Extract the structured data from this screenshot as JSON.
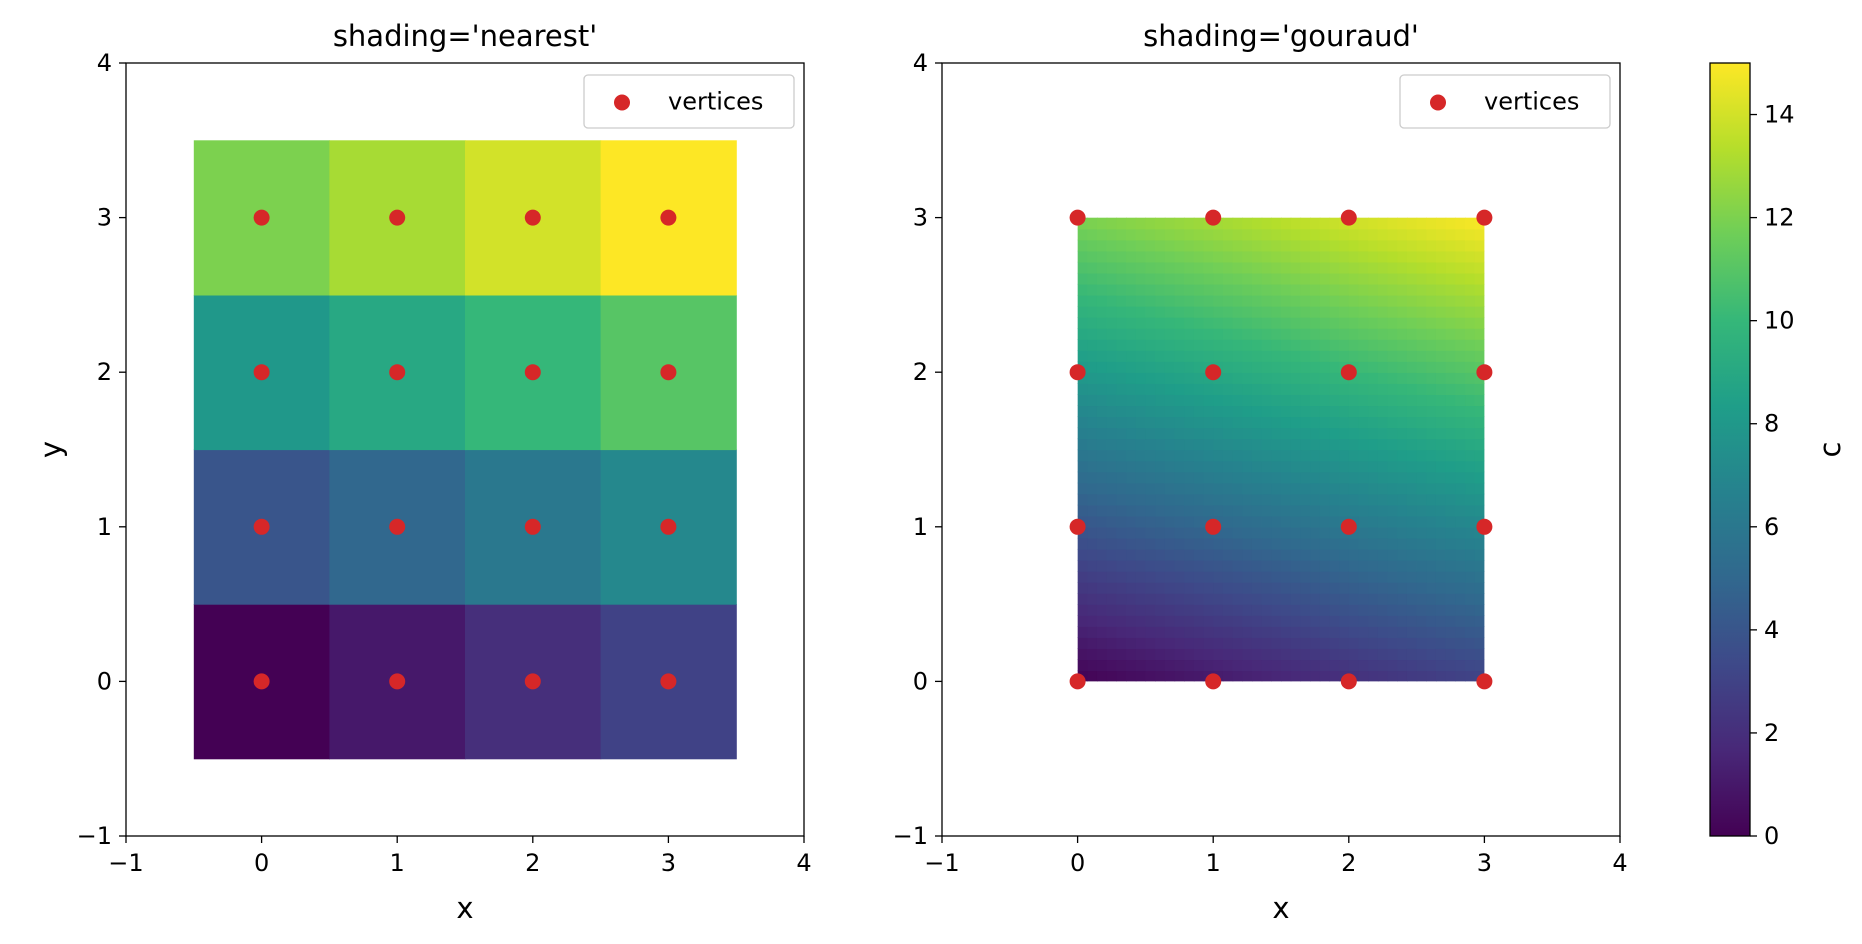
{
  "colormap": {
    "name": "viridis",
    "stops": [
      "#440154",
      "#482878",
      "#3e4989",
      "#31688e",
      "#26828e",
      "#1f9e89",
      "#35b779",
      "#6ece58",
      "#b5de2b",
      "#fde725"
    ]
  },
  "marker_color": "#d62728",
  "chart_data": [
    {
      "type": "heatmap",
      "title": "shading='nearest'",
      "xlabel": "x",
      "ylabel": "y",
      "xlim": [
        -1,
        4
      ],
      "ylim": [
        -1,
        4
      ],
      "xticks": [
        -1,
        0,
        1,
        2,
        3,
        4
      ],
      "yticks": [
        -1,
        0,
        1,
        2,
        3,
        4
      ],
      "xtick_labels": [
        "−1",
        "0",
        "1",
        "2",
        "3",
        "4"
      ],
      "ytick_labels": [
        "−1",
        "0",
        "1",
        "2",
        "3",
        "4"
      ],
      "shading": "nearest",
      "x": [
        0,
        1,
        2,
        3
      ],
      "y": [
        0,
        1,
        2,
        3
      ],
      "c": [
        [
          0,
          1,
          2,
          3
        ],
        [
          4,
          5,
          6,
          7
        ],
        [
          8,
          9,
          10,
          11
        ],
        [
          12,
          13,
          14,
          15
        ]
      ],
      "scatter": {
        "name": "vertices",
        "x": [
          0,
          1,
          2,
          3
        ],
        "y": [
          0,
          1,
          2,
          3
        ]
      },
      "legend": {
        "placement": "upper right",
        "label": "vertices"
      }
    },
    {
      "type": "heatmap",
      "title": "shading='gouraud'",
      "xlabel": "x",
      "ylabel": "",
      "xlim": [
        -1,
        4
      ],
      "ylim": [
        -1,
        4
      ],
      "xticks": [
        -1,
        0,
        1,
        2,
        3,
        4
      ],
      "yticks": [
        -1,
        0,
        1,
        2,
        3,
        4
      ],
      "xtick_labels": [
        "−1",
        "0",
        "1",
        "2",
        "3",
        "4"
      ],
      "ytick_labels": [
        "−1",
        "0",
        "1",
        "2",
        "3",
        "4"
      ],
      "shading": "gouraud",
      "x": [
        0,
        1,
        2,
        3
      ],
      "y": [
        0,
        1,
        2,
        3
      ],
      "c": [
        [
          0,
          1,
          2,
          3
        ],
        [
          4,
          5,
          6,
          7
        ],
        [
          8,
          9,
          10,
          11
        ],
        [
          12,
          13,
          14,
          15
        ]
      ],
      "scatter": {
        "name": "vertices",
        "x": [
          0,
          1,
          2,
          3
        ],
        "y": [
          0,
          1,
          2,
          3
        ]
      },
      "legend": {
        "placement": "upper right",
        "label": "vertices"
      }
    }
  ],
  "colorbar": {
    "label": "c",
    "range": [
      0,
      15
    ],
    "ticks": [
      0,
      2,
      4,
      6,
      8,
      10,
      12,
      14
    ],
    "tick_labels": [
      "0",
      "2",
      "4",
      "6",
      "8",
      "10",
      "12",
      "14"
    ]
  }
}
